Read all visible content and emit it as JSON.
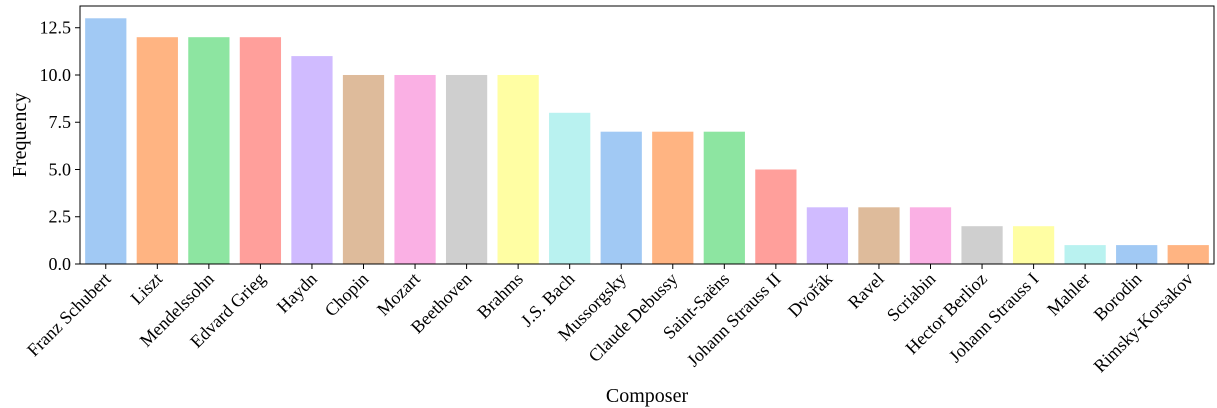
{
  "chart_data": {
    "type": "bar",
    "title": "",
    "xlabel": "Composer",
    "ylabel": "Frequency",
    "ylim": [
      0,
      13.65
    ],
    "yticks": [
      0,
      2.5,
      5,
      7.5,
      10,
      12.5
    ],
    "ytick_labels": [
      "0.0",
      "2.5",
      "5.0",
      "7.5",
      "10.0",
      "12.5"
    ],
    "grid": false,
    "legend": "none",
    "categories": [
      "Franz Schubert",
      "Liszt",
      "Mendelssohn",
      "Edvard Grieg",
      "Haydn",
      "Chopin",
      "Mozart",
      "Beethoven",
      "Brahms",
      "J.S. Bach",
      "Mussorgsky",
      "Claude Debussy",
      "Saint-Saëns",
      "Johann Strauss II",
      "Dvořák",
      "Ravel",
      "Scriabin",
      "Hector Berlioz",
      "Johann Strauss I",
      "Mahler",
      "Borodin",
      "Rimsky-Korsakov"
    ],
    "values": [
      13,
      12,
      12,
      12,
      11,
      10,
      10,
      10,
      10,
      8,
      7,
      7,
      7,
      5,
      3,
      3,
      3,
      2,
      2,
      1,
      1,
      1
    ],
    "colors": [
      "#a1c9f4",
      "#ffb482",
      "#8de5a1",
      "#ff9f9b",
      "#d0bbff",
      "#debb9b",
      "#fab0e4",
      "#cfcfcf",
      "#fffea3",
      "#b9f2f0",
      "#a1c9f4",
      "#ffb482",
      "#8de5a1",
      "#ff9f9b",
      "#d0bbff",
      "#debb9b",
      "#fab0e4",
      "#cfcfcf",
      "#fffea3",
      "#b9f2f0",
      "#a1c9f4",
      "#ffb482"
    ]
  }
}
